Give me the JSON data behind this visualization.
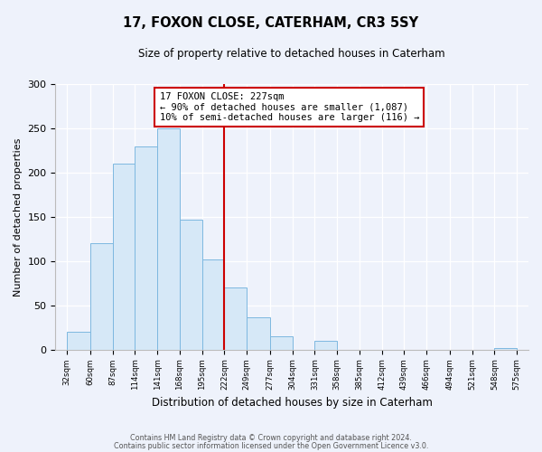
{
  "title": "17, FOXON CLOSE, CATERHAM, CR3 5SY",
  "subtitle": "Size of property relative to detached houses in Caterham",
  "xlabel": "Distribution of detached houses by size in Caterham",
  "ylabel": "Number of detached properties",
  "bar_edges": [
    32,
    60,
    87,
    114,
    141,
    168,
    195,
    222,
    249,
    277,
    304,
    331,
    358,
    385,
    412,
    439,
    466,
    494,
    521,
    548,
    575
  ],
  "bar_heights": [
    20,
    120,
    210,
    230,
    250,
    147,
    102,
    70,
    36,
    15,
    0,
    10,
    0,
    0,
    0,
    0,
    0,
    0,
    0,
    2
  ],
  "tick_labels": [
    "32sqm",
    "60sqm",
    "87sqm",
    "114sqm",
    "141sqm",
    "168sqm",
    "195sqm",
    "222sqm",
    "249sqm",
    "277sqm",
    "304sqm",
    "331sqm",
    "358sqm",
    "385sqm",
    "412sqm",
    "439sqm",
    "466sqm",
    "494sqm",
    "521sqm",
    "548sqm",
    "575sqm"
  ],
  "property_line_x": 222,
  "property_line_color": "#cc0000",
  "bar_fill_color": "#d6e8f7",
  "bar_edgecolor": "#7db8e0",
  "annotation_line1": "17 FOXON CLOSE: 227sqm",
  "annotation_line2": "← 90% of detached houses are smaller (1,087)",
  "annotation_line3": "10% of semi-detached houses are larger (116) →",
  "annotation_box_edgecolor": "#cc0000",
  "annotation_box_facecolor": "white",
  "ylim": [
    0,
    300
  ],
  "yticks": [
    0,
    50,
    100,
    150,
    200,
    250,
    300
  ],
  "footer1": "Contains HM Land Registry data © Crown copyright and database right 2024.",
  "footer2": "Contains public sector information licensed under the Open Government Licence v3.0.",
  "background_color": "#eef2fb",
  "grid_color": "#ffffff"
}
